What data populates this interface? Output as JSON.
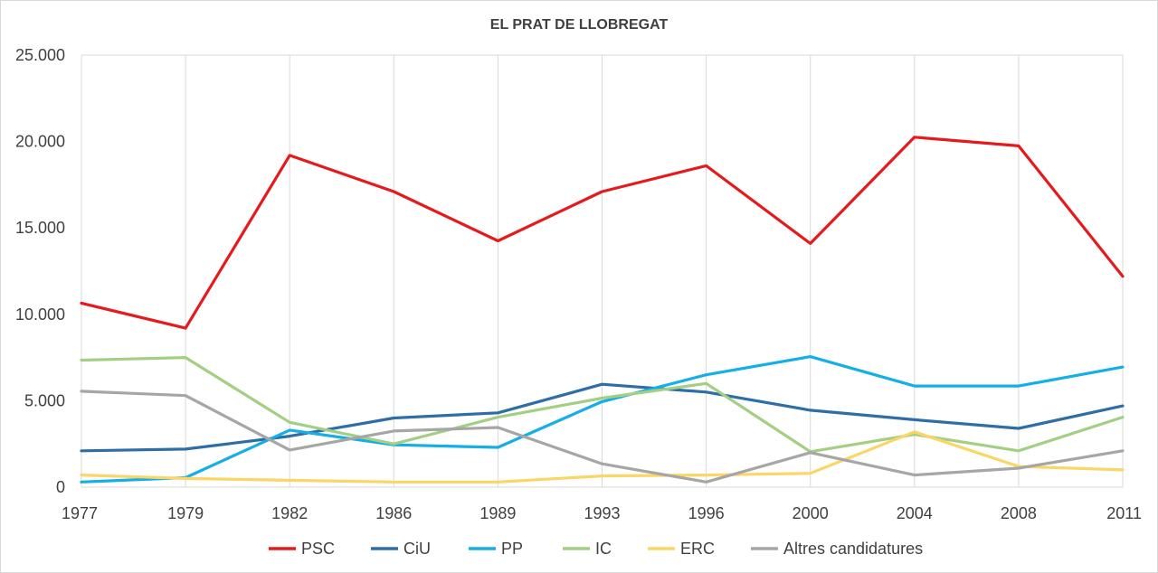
{
  "chart_data": {
    "type": "line",
    "title": "EL PRAT DE LLOBREGAT",
    "xlabel": "",
    "ylabel": "",
    "categories": [
      "1977",
      "1979",
      "1982",
      "1986",
      "1989",
      "1993",
      "1996",
      "2000",
      "2004",
      "2008",
      "2011"
    ],
    "ylim": [
      0,
      25000
    ],
    "yticks": [
      0,
      5000,
      10000,
      15000,
      20000,
      25000
    ],
    "ytick_labels": [
      "0",
      "5.000",
      "10.000",
      "15.000",
      "20.000",
      "25.000"
    ],
    "grid": "vertical",
    "legend_position": "bottom",
    "series": [
      {
        "name": "PSC",
        "color": "#e41a1c",
        "values": [
          10650,
          9200,
          19200,
          17100,
          14250,
          17100,
          18600,
          14100,
          20250,
          19750,
          12200
        ]
      },
      {
        "name": "CiU",
        "color": "#2e6ea6",
        "values": [
          2100,
          2200,
          2950,
          4000,
          4300,
          5950,
          5500,
          4450,
          3900,
          3400,
          4700
        ]
      },
      {
        "name": "PP",
        "color": "#15aee6",
        "values": [
          300,
          550,
          3300,
          2450,
          2300,
          4950,
          6500,
          7550,
          5850,
          5850,
          6950
        ]
      },
      {
        "name": "IC",
        "color": "#a3cf83",
        "values": [
          7350,
          7500,
          3750,
          2500,
          4050,
          5150,
          6000,
          2050,
          3050,
          2100,
          4050
        ]
      },
      {
        "name": "ERC",
        "color": "#fbd565",
        "values": [
          700,
          500,
          400,
          300,
          300,
          650,
          700,
          800,
          3200,
          1200,
          1000
        ]
      },
      {
        "name": "Altres candidatures",
        "color": "#a6a6a6",
        "values": [
          5550,
          5300,
          2150,
          3250,
          3450,
          1350,
          300,
          2000,
          700,
          1100,
          2100
        ]
      }
    ]
  }
}
